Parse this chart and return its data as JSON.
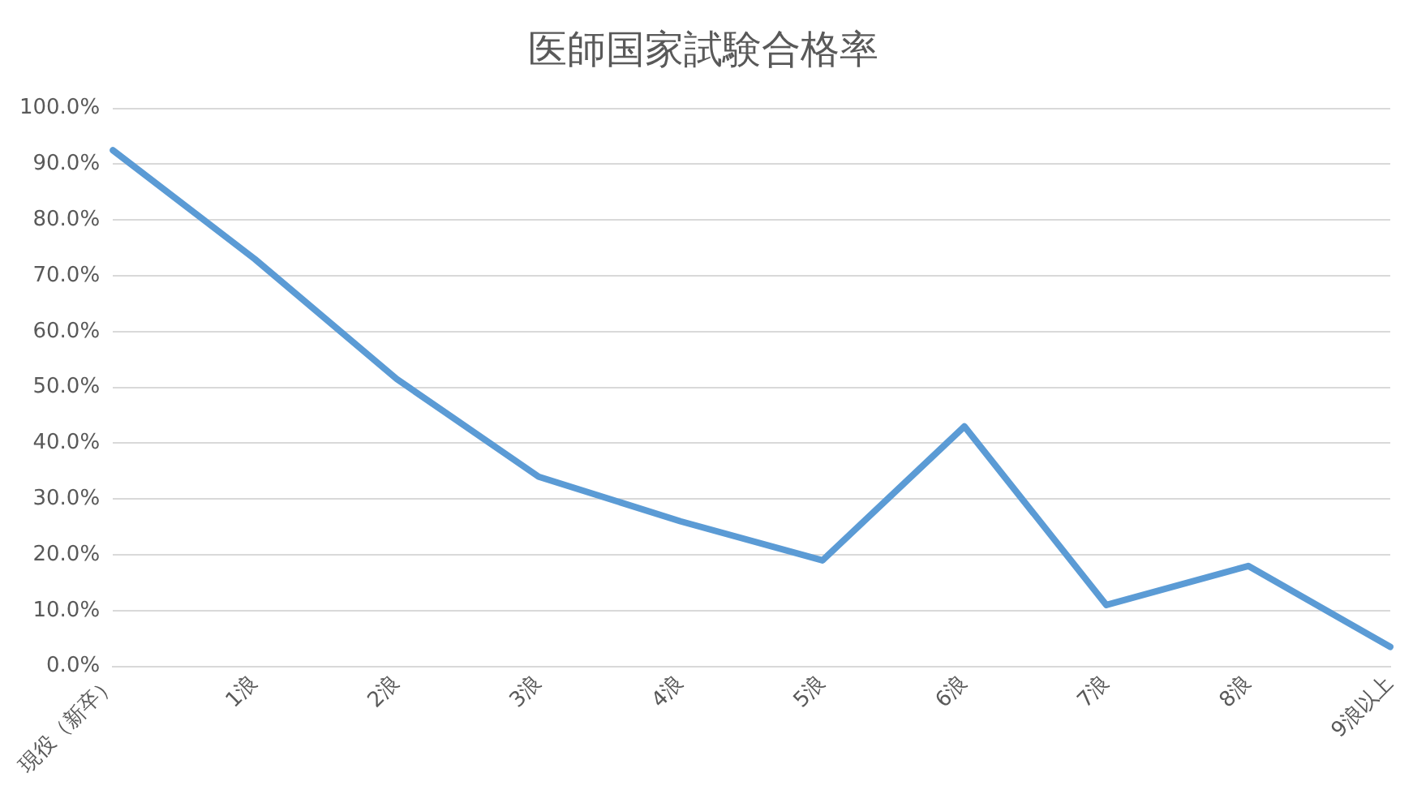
{
  "chart_data": {
    "type": "line",
    "title": "医師国家試験合格率",
    "categories": [
      "現役（新卒）",
      "1浪",
      "2浪",
      "3浪",
      "4浪",
      "5浪",
      "6浪",
      "7浪",
      "8浪",
      "9浪以上"
    ],
    "series": [
      {
        "color": "#5b9bd5",
        "values": [
          92.5,
          73,
          51.5,
          34,
          26,
          19,
          43,
          11,
          18,
          3.5
        ]
      }
    ],
    "ylim": [
      0,
      100
    ],
    "yticks": [
      {
        "value": 0,
        "label": "0.0%"
      },
      {
        "value": 10,
        "label": "10.0%"
      },
      {
        "value": 20,
        "label": "20.0%"
      },
      {
        "value": 30,
        "label": "30.0%"
      },
      {
        "value": 40,
        "label": "40.0%"
      },
      {
        "value": 50,
        "label": "50.0%"
      },
      {
        "value": 60,
        "label": "60.0%"
      },
      {
        "value": 70,
        "label": "70.0%"
      },
      {
        "value": 80,
        "label": "80.0%"
      },
      {
        "value": 90,
        "label": "90.0%"
      },
      {
        "value": 100,
        "label": "100.0%"
      }
    ],
    "grid": "y",
    "legend": false,
    "marker": "none",
    "line_style": "solid"
  }
}
